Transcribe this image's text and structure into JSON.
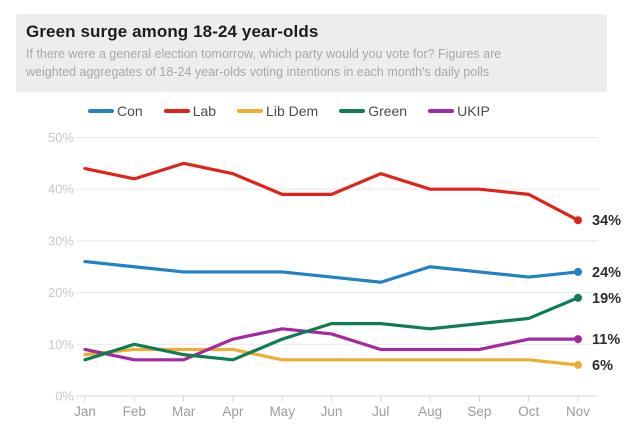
{
  "chart_data": {
    "type": "line",
    "title": "Green surge among 18-24 year-olds",
    "subtitle": "If there were a general election tomorrow, which party would you vote for? Figures are\nweighted aggregates of 18-24 year-olds voting intentions in each month's daily polls",
    "categories": [
      "Jan",
      "Feb",
      "Mar",
      "Apr",
      "May",
      "Jun",
      "Jul",
      "Aug",
      "Sep",
      "Oct",
      "Nov"
    ],
    "series": [
      {
        "name": "Con",
        "color": "#1f82c4",
        "values": [
          26,
          25,
          24,
          24,
          24,
          23,
          22,
          25,
          24,
          23,
          24
        ],
        "end_label": "24%"
      },
      {
        "name": "Lab",
        "color": "#e0231a",
        "values": [
          44,
          42,
          45,
          43,
          39,
          39,
          43,
          40,
          40,
          39,
          34
        ],
        "end_label": "34%"
      },
      {
        "name": "Lib Dem",
        "color": "#f0ad33",
        "values": [
          8,
          9,
          9,
          9,
          7,
          7,
          7,
          7,
          7,
          7,
          6
        ],
        "end_label": "6%"
      },
      {
        "name": "Green",
        "color": "#107c54",
        "values": [
          7,
          10,
          8,
          7,
          11,
          14,
          14,
          13,
          14,
          15,
          19
        ],
        "end_label": "19%"
      },
      {
        "name": "UKIP",
        "color": "#a329a0",
        "values": [
          9,
          7,
          7,
          11,
          13,
          12,
          9,
          9,
          9,
          11,
          11
        ],
        "end_label": "11%"
      }
    ],
    "ylim": [
      0,
      50
    ],
    "ytick_labels": [
      "0%",
      "10%",
      "20%",
      "30%",
      "40%",
      "50%"
    ],
    "xlabel": "",
    "ylabel": "",
    "grid": true,
    "legend_position": "top",
    "colors": {
      "grid_line": "#e8e8e8",
      "axis_line": "#d9d9d9",
      "y_tick_label": "#c9c9c9",
      "x_tick_label": "#9c9c9c",
      "end_value_label": "#2e2e2e",
      "header_background": "#ededed",
      "title_text": "#1d1d1d",
      "subtitle_text": "#a8a8a8",
      "legend_text": "#4c4c4c"
    }
  }
}
